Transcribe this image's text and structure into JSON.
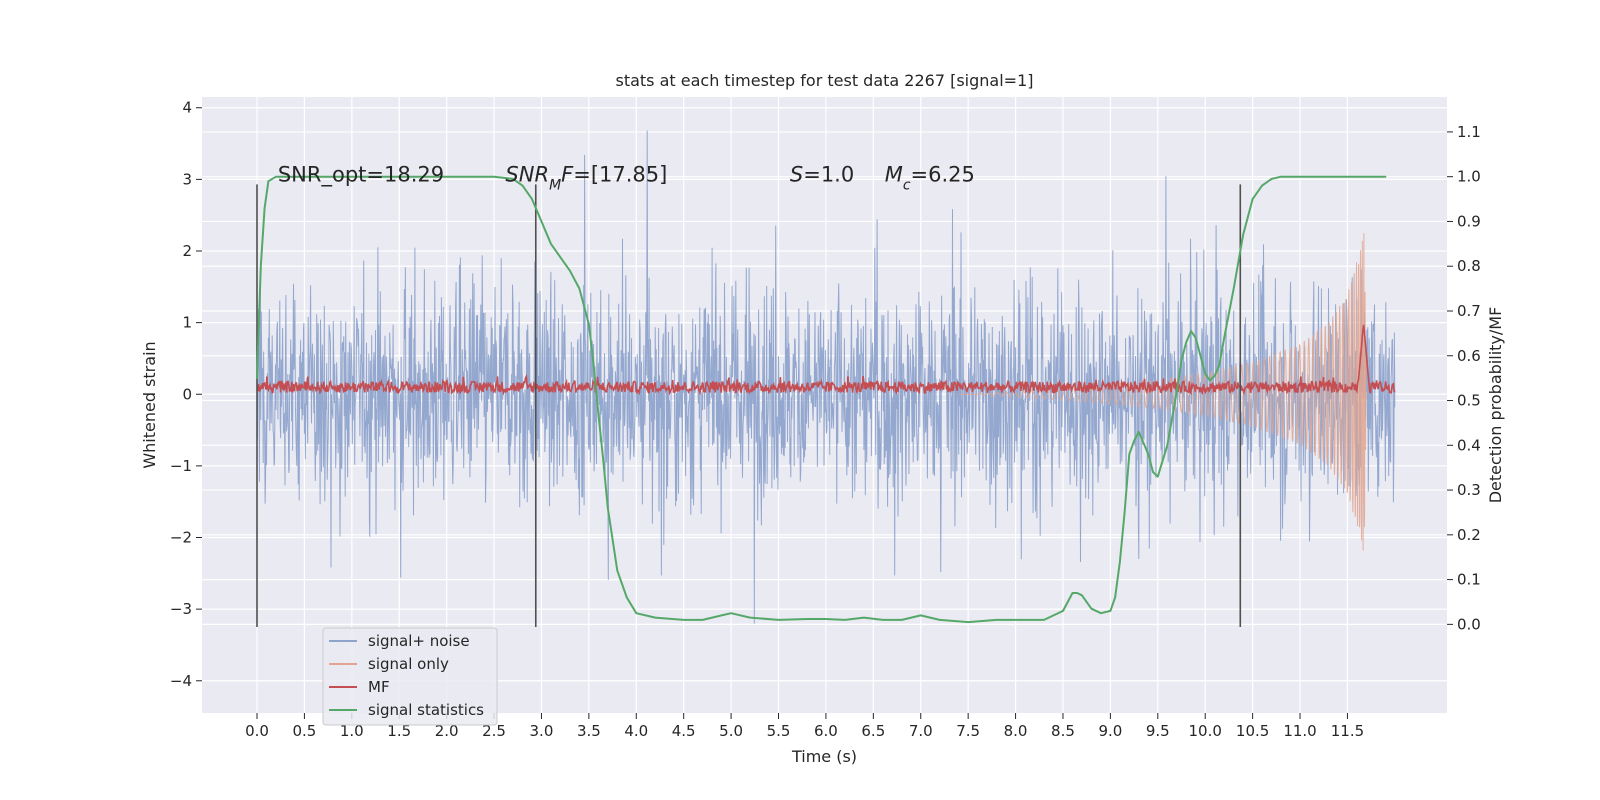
{
  "chart_data": {
    "type": "line",
    "title": "stats at each timestep for test data 2267 [signal=1]",
    "xlabel": "Time (s)",
    "ylabel_left": "Whitened strain",
    "ylabel_right": "Detection probability/MF",
    "xlim": [
      -0.58,
      12.55
    ],
    "ylim_left": [
      -4.45,
      4.15
    ],
    "ylim_right": [
      -0.198,
      1.178
    ],
    "grid": true,
    "legend_position": "lower-left",
    "x_ticks": [
      {
        "value": 0.0,
        "label": "0.0"
      },
      {
        "value": 0.5,
        "label": "0.5"
      },
      {
        "value": 1.0,
        "label": "1.0"
      },
      {
        "value": 1.5,
        "label": "1.5"
      },
      {
        "value": 2.0,
        "label": "2.0"
      },
      {
        "value": 2.5,
        "label": "2.5"
      },
      {
        "value": 3.0,
        "label": "3.0"
      },
      {
        "value": 3.5,
        "label": "3.5"
      },
      {
        "value": 4.0,
        "label": "4.0"
      },
      {
        "value": 4.5,
        "label": "4.5"
      },
      {
        "value": 5.0,
        "label": "5.0"
      },
      {
        "value": 5.5,
        "label": "5.5"
      },
      {
        "value": 6.0,
        "label": "6.0"
      },
      {
        "value": 6.5,
        "label": "6.5"
      },
      {
        "value": 7.0,
        "label": "7.0"
      },
      {
        "value": 7.5,
        "label": "7.5"
      },
      {
        "value": 8.0,
        "label": "8.0"
      },
      {
        "value": 8.5,
        "label": "8.5"
      },
      {
        "value": 9.0,
        "label": "9.0"
      },
      {
        "value": 9.5,
        "label": "9.5"
      },
      {
        "value": 10.0,
        "label": "10.0"
      },
      {
        "value": 10.5,
        "label": "10.5"
      },
      {
        "value": 11.0,
        "label": "11.0"
      },
      {
        "value": 11.5,
        "label": "11.5"
      }
    ],
    "y_ticks_left": [
      {
        "value": 4,
        "label": "4"
      },
      {
        "value": 3,
        "label": "3"
      },
      {
        "value": 2,
        "label": "2"
      },
      {
        "value": 1,
        "label": "1"
      },
      {
        "value": 0,
        "label": "0"
      },
      {
        "value": -1,
        "label": "−1"
      },
      {
        "value": -2,
        "label": "−2"
      },
      {
        "value": -3,
        "label": "−3"
      },
      {
        "value": -4,
        "label": "−4"
      }
    ],
    "y_ticks_right": [
      {
        "value": 1.1,
        "label": "1.1"
      },
      {
        "value": 1.0,
        "label": "1.0"
      },
      {
        "value": 0.9,
        "label": "0.9"
      },
      {
        "value": 0.8,
        "label": "0.8"
      },
      {
        "value": 0.7,
        "label": "0.7"
      },
      {
        "value": 0.6,
        "label": "0.6"
      },
      {
        "value": 0.5,
        "label": "0.5"
      },
      {
        "value": 0.4,
        "label": "0.4"
      },
      {
        "value": 0.3,
        "label": "0.3"
      },
      {
        "value": 0.2,
        "label": "0.2"
      },
      {
        "value": 0.1,
        "label": "0.1"
      },
      {
        "value": 0.0,
        "label": "0.0"
      }
    ],
    "annotations": [
      {
        "name": "snr-opt-annotation",
        "x": 0.22,
        "y": 3.0,
        "parts": [
          {
            "t": "SNR_opt=18.29"
          }
        ]
      },
      {
        "name": "snr-mf-annotation",
        "x": 2.62,
        "y": 3.0,
        "parts": [
          {
            "t": "SNR",
            "i": true
          },
          {
            "t": "M",
            "i": true,
            "sub": true
          },
          {
            "t": "F",
            "i": true
          },
          {
            "t": "=[17.85]"
          }
        ]
      },
      {
        "name": "s-annotation",
        "x": 5.62,
        "y": 3.0,
        "parts": [
          {
            "t": "S",
            "i": true
          },
          {
            "t": "=1.0"
          }
        ]
      },
      {
        "name": "mc-annotation",
        "x": 6.62,
        "y": 3.0,
        "parts": [
          {
            "t": "M",
            "i": true
          },
          {
            "t": "c",
            "i": true,
            "sub": true
          },
          {
            "t": "=6.25"
          }
        ]
      }
    ],
    "vertical_markers": [
      {
        "x": 0.0,
        "y_range": [
          -3.25,
          2.93
        ]
      },
      {
        "x": 2.94,
        "y_range": [
          -3.25,
          2.93
        ]
      },
      {
        "x": 10.37,
        "y_range": [
          -3.25,
          2.93
        ]
      }
    ],
    "series": [
      {
        "name": "signal+ noise",
        "color": "#8fa4cc",
        "axis": "left",
        "description": "whitened strain, noise with peaks reaching about ±3.7",
        "x_range": [
          0.0,
          12.0
        ],
        "envelope": {
          "upper_typical": 1.2,
          "upper_peak": 3.7,
          "lower_typical": -1.2,
          "lower_peak": -3.6
        }
      },
      {
        "name": "signal only",
        "color": "#e0a48f",
        "axis": "left",
        "description": "chirp with amplitude growing toward merger",
        "amplitude_points": [
          [
            7.5,
            0.0
          ],
          [
            8.5,
            0.08
          ],
          [
            9.5,
            0.2
          ],
          [
            10.0,
            0.3
          ],
          [
            10.5,
            0.45
          ],
          [
            11.0,
            0.7
          ],
          [
            11.3,
            1.0
          ],
          [
            11.5,
            1.4
          ],
          [
            11.65,
            2.1
          ],
          [
            11.68,
            2.3
          ],
          [
            11.7,
            0.0
          ]
        ]
      },
      {
        "name": "MF",
        "color": "#c44e52",
        "axis": "left",
        "description": "matched filter output, low-level noise around 0.1 with a spike near 11.67 s",
        "baseline": 0.1,
        "spike": {
          "x": 11.67,
          "y": 1.0
        }
      },
      {
        "name": "signal statistics",
        "color": "#55a868",
        "axis": "right",
        "x": [
          0.0,
          0.04,
          0.08,
          0.12,
          0.2,
          0.35,
          0.6,
          1.0,
          1.5,
          2.0,
          2.5,
          2.7,
          2.8,
          2.9,
          3.0,
          3.1,
          3.2,
          3.3,
          3.4,
          3.5,
          3.55,
          3.6,
          3.65,
          3.7,
          3.8,
          3.9,
          4.0,
          4.2,
          4.5,
          4.7,
          4.9,
          5.0,
          5.2,
          5.5,
          5.8,
          6.0,
          6.2,
          6.4,
          6.6,
          6.8,
          7.0,
          7.2,
          7.5,
          7.8,
          8.0,
          8.3,
          8.5,
          8.6,
          8.65,
          8.7,
          8.8,
          8.9,
          9.0,
          9.05,
          9.1,
          9.15,
          9.2,
          9.25,
          9.3,
          9.4,
          9.45,
          9.5,
          9.6,
          9.7,
          9.75,
          9.8,
          9.85,
          9.9,
          10.0,
          10.05,
          10.1,
          10.15,
          10.2,
          10.3,
          10.4,
          10.5,
          10.6,
          10.7,
          10.8,
          11.0,
          11.5,
          11.9
        ],
        "y": [
          0.55,
          0.8,
          0.93,
          0.99,
          1.0,
          1.0,
          1.0,
          1.0,
          1.0,
          1.0,
          1.0,
          0.995,
          0.98,
          0.95,
          0.9,
          0.85,
          0.82,
          0.79,
          0.75,
          0.67,
          0.58,
          0.47,
          0.37,
          0.26,
          0.12,
          0.06,
          0.025,
          0.015,
          0.01,
          0.01,
          0.02,
          0.025,
          0.015,
          0.01,
          0.012,
          0.012,
          0.01,
          0.015,
          0.01,
          0.01,
          0.02,
          0.01,
          0.005,
          0.01,
          0.01,
          0.01,
          0.03,
          0.07,
          0.07,
          0.065,
          0.035,
          0.025,
          0.03,
          0.06,
          0.14,
          0.25,
          0.38,
          0.41,
          0.43,
          0.38,
          0.34,
          0.33,
          0.4,
          0.52,
          0.59,
          0.63,
          0.655,
          0.64,
          0.56,
          0.545,
          0.555,
          0.58,
          0.64,
          0.75,
          0.87,
          0.95,
          0.98,
          0.995,
          1.0,
          1.0,
          1.0,
          1.0
        ]
      }
    ]
  }
}
